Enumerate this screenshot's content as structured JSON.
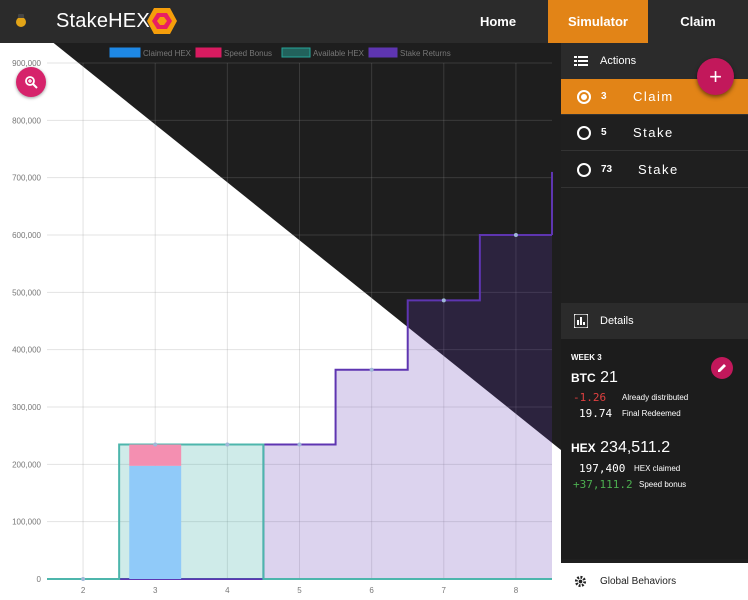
{
  "header": {
    "brand": "StakeHEX",
    "nav": [
      {
        "label": "Home"
      },
      {
        "label": "Simulator",
        "active": true
      },
      {
        "label": "Claim"
      }
    ],
    "accent_color": "#e28417"
  },
  "chart_data": {
    "type": "area",
    "legend": [
      "Claimed HEX",
      "Speed Bonus",
      "Available HEX",
      "Stake Returns"
    ],
    "legend_colors": [
      "#1e88e5",
      "#d81b60",
      "#26a69a",
      "#5e35b1"
    ],
    "legend_placement": "top",
    "x_ticks": [
      "2",
      "3",
      "4",
      "5",
      "6",
      "7",
      "8"
    ],
    "y_ticks": [
      "0",
      "100,000",
      "200,000",
      "300,000",
      "400,000",
      "500,000",
      "600,000",
      "700,000",
      "800,000",
      "900,000"
    ],
    "ylim": [
      0,
      900000
    ],
    "grid": true,
    "series": [
      {
        "name": "Claimed HEX",
        "x": [
          3
        ],
        "values": [
          197400
        ]
      },
      {
        "name": "Speed Bonus",
        "x": [
          3
        ],
        "values": [
          37111.2
        ]
      },
      {
        "name": "Available HEX",
        "x": [
          2,
          3,
          4,
          5,
          6,
          7,
          8
        ],
        "values": [
          0,
          234511.2,
          234511.2,
          0,
          0,
          0,
          0
        ]
      },
      {
        "name": "Stake Returns",
        "x": [
          2,
          3,
          4,
          5,
          6,
          7,
          8
        ],
        "values": [
          0,
          0,
          0,
          234511.2,
          365000,
          486000,
          600000
        ]
      }
    ]
  },
  "actions": {
    "title": "Actions",
    "items": [
      {
        "num": "3",
        "type": "Claim",
        "active": true
      },
      {
        "num": "5",
        "type": "Stake",
        "active": false
      },
      {
        "num": "73",
        "type": "Stake",
        "active": false
      }
    ]
  },
  "details": {
    "title": "Details",
    "week": "WEEK 3",
    "btc_label": "BTC",
    "btc_value": "21",
    "btc_rows": [
      {
        "value": "-1.26",
        "label": "Already distributed",
        "tone": "neg"
      },
      {
        "value": "19.74",
        "label": "Final Redeemed",
        "tone": "plain"
      }
    ],
    "hex_label": "HEX",
    "hex_value": "234,511.2",
    "hex_rows": [
      {
        "value": "197,400",
        "label": "HEX claimed",
        "tone": "plain"
      },
      {
        "value": "+37,111.2",
        "label": "Speed bonus",
        "tone": "pos"
      }
    ]
  },
  "footer": {
    "global_label": "Global Behaviors"
  }
}
